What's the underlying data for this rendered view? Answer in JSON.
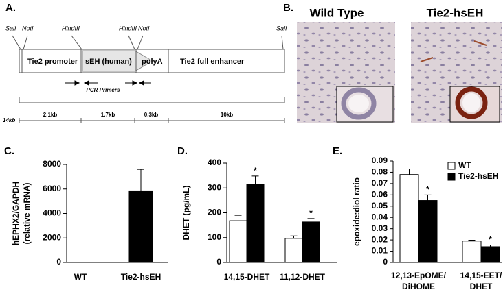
{
  "panel_labels": [
    "A.",
    "B.",
    "C.",
    "D.",
    "E."
  ],
  "construct": {
    "sites": [
      "SalI",
      "NotI",
      "HindIII",
      "HindIII",
      "NotI",
      "SalI"
    ],
    "elements": [
      "Tie2 promoter",
      "sEH (human)",
      "polyA",
      "Tie2 full enhancer"
    ],
    "primers_label": "PCR Primers",
    "scale_label": "14kb",
    "segment_lengths": [
      "2.1kb",
      "1.7kb",
      "0.3kb",
      "10kb"
    ]
  },
  "micrographs": [
    "Wild Type",
    "Tie2-hsEH"
  ],
  "chart_data": [
    {
      "type": "bar",
      "y_label": [
        "hEPHX2/GAPDH",
        "(relative mRNA)"
      ],
      "categories": [
        "WT",
        "Tie2-hsEH"
      ],
      "values": [
        20,
        5850
      ],
      "errors": [
        0,
        1750
      ],
      "color": "#000000",
      "ylim": [
        0,
        8000
      ],
      "yticks": [
        0,
        2000,
        4000,
        6000,
        8000
      ]
    },
    {
      "type": "bar",
      "y_label": [
        "DHET (pg/mL)"
      ],
      "categories": [
        "14,15-DHET",
        "11,12-DHET"
      ],
      "series": [
        {
          "name": "WT",
          "color": "#ffffff",
          "values": [
            168,
            97
          ],
          "errors": [
            22,
            10
          ]
        },
        {
          "name": "Tie2-hsEH",
          "color": "#000000",
          "values": [
            315,
            163
          ],
          "errors": [
            33,
            14
          ],
          "annotations": [
            "*",
            "*"
          ]
        }
      ],
      "ylim": [
        0,
        400
      ],
      "yticks": [
        0,
        100,
        200,
        300,
        400
      ]
    },
    {
      "type": "bar",
      "y_label": [
        "epoxide:diol ratio"
      ],
      "categories": [
        [
          "12,13-EpOME/",
          "DiHOME"
        ],
        [
          "14,15-EET/",
          "DHET"
        ]
      ],
      "series": [
        {
          "name": "WT",
          "color": "#ffffff",
          "values": [
            0.078,
            0.019
          ],
          "errors": [
            0.005,
            0.0008
          ]
        },
        {
          "name": "Tie2-hsEH",
          "color": "#000000",
          "values": [
            0.055,
            0.014
          ],
          "errors": [
            0.005,
            0.0015
          ],
          "annotations": [
            "*",
            "*"
          ]
        }
      ],
      "ylim": [
        0,
        0.09
      ],
      "yticks": [
        0,
        0.01,
        0.02,
        0.03,
        0.04,
        0.05,
        0.06,
        0.07,
        0.08,
        0.09
      ],
      "legend": "top-right"
    }
  ]
}
